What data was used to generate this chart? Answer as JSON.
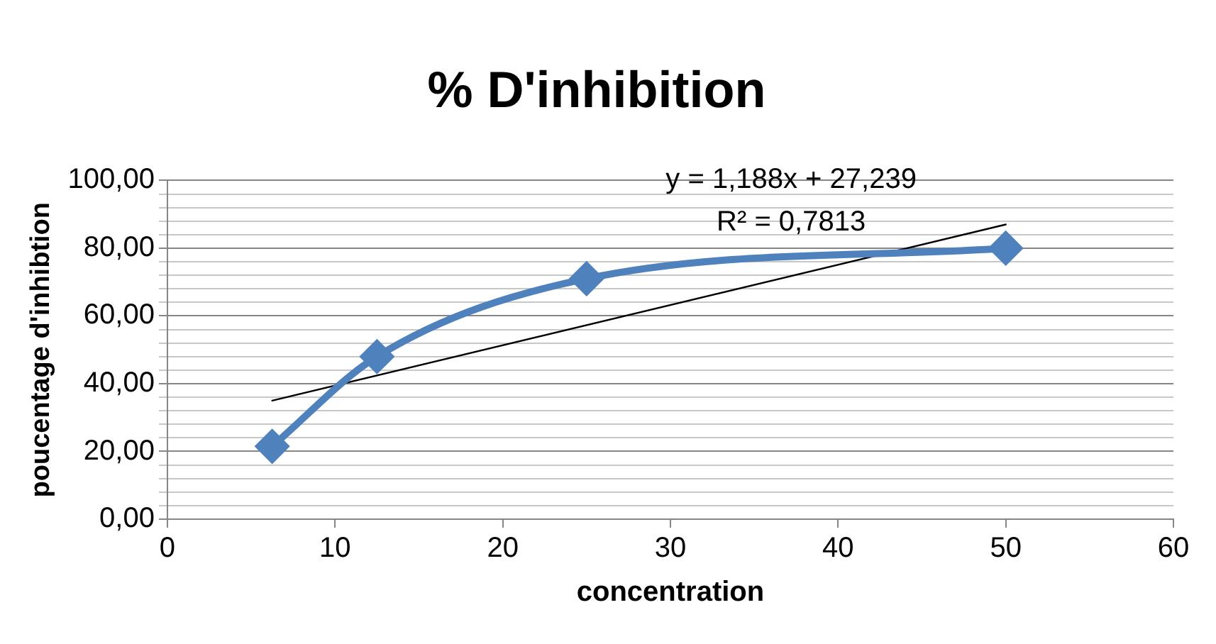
{
  "chart_data": {
    "type": "line",
    "title": "% D'inhibition",
    "xlabel": "concentration",
    "ylabel": "poucentage d'inhibtion",
    "x": [
      6.25,
      12.5,
      25,
      50
    ],
    "series": [
      {
        "color": "#4f81bd",
        "values": [
          21.5,
          48,
          71,
          80
        ],
        "marker": "diamond"
      },
      {
        "type": "line",
        "x": [
          6.25,
          50
        ],
        "values": [
          35,
          87
        ],
        "color": "#000000",
        "marker": "none"
      }
    ],
    "xlim": [
      0,
      60
    ],
    "xticks": [
      0,
      10,
      20,
      30,
      40,
      50,
      60
    ],
    "ylim": [
      0,
      100
    ],
    "yticks": [
      {
        "value": 0,
        "label": "0,00"
      },
      {
        "value": 4,
        "label": null
      },
      {
        "value": 8,
        "label": null
      },
      {
        "value": 12,
        "label": null
      },
      {
        "value": 16,
        "label": null
      },
      {
        "value": 20,
        "label": "20,00"
      },
      {
        "value": 24,
        "label": null
      },
      {
        "value": 28,
        "label": null
      },
      {
        "value": 32,
        "label": null
      },
      {
        "value": 36,
        "label": null
      },
      {
        "value": 40,
        "label": "40,00"
      },
      {
        "value": 44,
        "label": null
      },
      {
        "value": 48,
        "label": null
      },
      {
        "value": 52,
        "label": null
      },
      {
        "value": 56,
        "label": null
      },
      {
        "value": 60,
        "label": "60,00"
      },
      {
        "value": 64,
        "label": null
      },
      {
        "value": 68,
        "label": null
      },
      {
        "value": 72,
        "label": null
      },
      {
        "value": 76,
        "label": null
      },
      {
        "value": 80,
        "label": "80,00"
      },
      {
        "value": 84,
        "label": null
      },
      {
        "value": 88,
        "label": null
      },
      {
        "value": 92,
        "label": null
      },
      {
        "value": 96,
        "label": null
      },
      {
        "value": 100,
        "label": "100,00"
      }
    ],
    "grid": "y",
    "legend": false,
    "annotations": [
      "y = 1,188x + 27,239",
      "R² = 0,7813"
    ]
  }
}
